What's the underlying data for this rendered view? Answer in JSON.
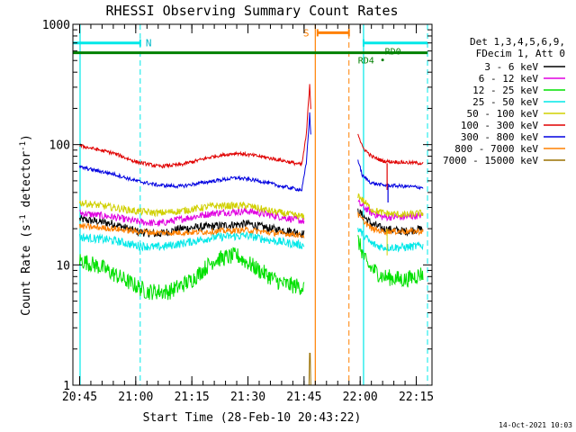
{
  "chart_data": {
    "type": "line",
    "title": "RHESSI Observing Summary Count Rates",
    "xlabel": "Start Time (28-Feb-10 20:43:22)",
    "ylabel_main": "Count Rate (s",
    "ylabel_sup1": "-1",
    "ylabel_mid": " detector",
    "ylabel_sup2": "-1",
    "ylabel_end": ")",
    "yscale": "log",
    "ylim": [
      1,
      1000
    ],
    "xlim_minutes": [
      20.72,
      22.32
    ],
    "x_ticks": [
      {
        "v": 20.75,
        "label": "20:45"
      },
      {
        "v": 21.0,
        "label": "21:00"
      },
      {
        "v": 21.25,
        "label": "21:15"
      },
      {
        "v": 21.5,
        "label": "21:30"
      },
      {
        "v": 21.75,
        "label": "21:45"
      },
      {
        "v": 22.0,
        "label": "22:00"
      },
      {
        "v": 22.25,
        "label": "22:15"
      }
    ],
    "y_ticks": [
      {
        "v": 1,
        "label": "1"
      },
      {
        "v": 10,
        "label": "10"
      },
      {
        "v": 100,
        "label": "100"
      },
      {
        "v": 1000,
        "label": "1000"
      }
    ],
    "legend_header": [
      "Det 1,3,4,5,6,9,",
      "FDecim 1, Att 0"
    ],
    "legend": [
      {
        "label": "3 - 6 keV",
        "color": "#000000"
      },
      {
        "label": "6 - 12 keV",
        "color": "#e000e0"
      },
      {
        "label": "12 - 25 keV",
        "color": "#00e000"
      },
      {
        "label": "25 - 50 keV",
        "color": "#00e8e8"
      },
      {
        "label": "50 - 100 keV",
        "color": "#d0d000"
      },
      {
        "label": "100 - 300 keV",
        "color": "#e00000"
      },
      {
        "label": "300 - 800 keV",
        "color": "#0000e0"
      },
      {
        "label": "800 - 7000 keV",
        "color": "#ff8000"
      },
      {
        "label": "7000 - 15000 keV",
        "color": "#9a7000"
      }
    ],
    "series": [
      {
        "name": "3 - 6 keV",
        "color": "#000000",
        "noise": 0.035,
        "seg1": [
          [
            20.75,
            24
          ],
          [
            20.9,
            22
          ],
          [
            21.0,
            19
          ],
          [
            21.1,
            18
          ],
          [
            21.2,
            20
          ],
          [
            21.35,
            21
          ],
          [
            21.5,
            22
          ],
          [
            21.6,
            20
          ],
          [
            21.7,
            19
          ],
          [
            21.75,
            18
          ]
        ],
        "seg2": [
          [
            21.99,
            28
          ],
          [
            22.05,
            22
          ],
          [
            22.1,
            20
          ],
          [
            22.2,
            19
          ],
          [
            22.28,
            20
          ]
        ]
      },
      {
        "name": "6 - 12 keV",
        "color": "#e000e0",
        "noise": 0.03,
        "seg1": [
          [
            20.75,
            27
          ],
          [
            20.9,
            25
          ],
          [
            21.0,
            23
          ],
          [
            21.1,
            22
          ],
          [
            21.2,
            24
          ],
          [
            21.35,
            27
          ],
          [
            21.5,
            28
          ],
          [
            21.6,
            26
          ],
          [
            21.7,
            24
          ],
          [
            21.75,
            23
          ]
        ],
        "seg2": [
          [
            21.99,
            33
          ],
          [
            22.05,
            27
          ],
          [
            22.1,
            25
          ],
          [
            22.2,
            25
          ],
          [
            22.28,
            26
          ]
        ]
      },
      {
        "name": "12 - 25 keV",
        "color": "#00e000",
        "noise": 0.07,
        "seg1": [
          [
            20.75,
            11
          ],
          [
            20.85,
            9.5
          ],
          [
            20.95,
            7.5
          ],
          [
            21.05,
            6.0
          ],
          [
            21.15,
            6.0
          ],
          [
            21.25,
            7.5
          ],
          [
            21.35,
            11
          ],
          [
            21.45,
            12
          ],
          [
            21.55,
            9
          ],
          [
            21.65,
            7
          ],
          [
            21.75,
            6.5
          ]
        ],
        "seg2": [
          [
            21.99,
            16
          ],
          [
            22.03,
            10
          ],
          [
            22.1,
            8
          ],
          [
            22.2,
            7.5
          ],
          [
            22.28,
            8.5
          ]
        ]
      },
      {
        "name": "25 - 50 keV",
        "color": "#00e8e8",
        "noise": 0.035,
        "seg1": [
          [
            20.75,
            17
          ],
          [
            20.9,
            16
          ],
          [
            21.0,
            14.5
          ],
          [
            21.1,
            14
          ],
          [
            21.2,
            15
          ],
          [
            21.35,
            17
          ],
          [
            21.5,
            17.5
          ],
          [
            21.6,
            16
          ],
          [
            21.7,
            15
          ],
          [
            21.75,
            14.5
          ]
        ],
        "seg2": [
          [
            21.99,
            20
          ],
          [
            22.05,
            15
          ],
          [
            22.1,
            14
          ],
          [
            22.2,
            14
          ],
          [
            22.28,
            14.5
          ]
        ]
      },
      {
        "name": "50 - 100 keV",
        "color": "#d0d000",
        "noise": 0.03,
        "seg1": [
          [
            20.75,
            33
          ],
          [
            20.9,
            30
          ],
          [
            21.0,
            28
          ],
          [
            21.1,
            27
          ],
          [
            21.2,
            28
          ],
          [
            21.35,
            31
          ],
          [
            21.5,
            31
          ],
          [
            21.6,
            28
          ],
          [
            21.7,
            26
          ],
          [
            21.75,
            25
          ]
        ],
        "seg2": [
          [
            21.99,
            38
          ],
          [
            22.05,
            29
          ],
          [
            22.1,
            27
          ],
          [
            22.2,
            26
          ],
          [
            22.28,
            27
          ]
        ]
      },
      {
        "name": "100 - 300 keV",
        "color": "#e00000",
        "noise": 0.015,
        "seg1": [
          [
            20.75,
            98
          ],
          [
            20.9,
            85
          ],
          [
            21.0,
            72
          ],
          [
            21.1,
            66
          ],
          [
            21.2,
            68
          ],
          [
            21.35,
            80
          ],
          [
            21.45,
            85
          ],
          [
            21.55,
            80
          ],
          [
            21.65,
            74
          ],
          [
            21.74,
            68
          ],
          [
            21.76,
            120
          ],
          [
            21.775,
            320
          ],
          [
            21.78,
            200
          ]
        ],
        "seg2": [
          [
            21.99,
            125
          ],
          [
            22.01,
            95
          ],
          [
            22.05,
            80
          ],
          [
            22.1,
            73
          ],
          [
            22.2,
            71
          ],
          [
            22.28,
            70
          ]
        ]
      },
      {
        "name": "300 - 800 keV",
        "color": "#0000e0",
        "noise": 0.015,
        "seg1": [
          [
            20.75,
            65
          ],
          [
            20.9,
            57
          ],
          [
            21.0,
            50
          ],
          [
            21.1,
            46
          ],
          [
            21.2,
            45
          ],
          [
            21.35,
            50
          ],
          [
            21.45,
            53
          ],
          [
            21.55,
            50
          ],
          [
            21.65,
            45
          ],
          [
            21.74,
            42
          ],
          [
            21.76,
            70
          ],
          [
            21.775,
            180
          ],
          [
            21.78,
            120
          ]
        ],
        "seg2": [
          [
            21.99,
            75
          ],
          [
            22.01,
            55
          ],
          [
            22.05,
            48
          ],
          [
            22.1,
            46
          ],
          [
            22.2,
            45
          ],
          [
            22.28,
            44
          ]
        ]
      },
      {
        "name": "800 - 7000 keV",
        "color": "#ff8000",
        "noise": 0.025,
        "seg1": [
          [
            20.75,
            21
          ],
          [
            20.9,
            20
          ],
          [
            21.0,
            19
          ],
          [
            21.1,
            18.5
          ],
          [
            21.2,
            18.5
          ],
          [
            21.35,
            19
          ],
          [
            21.5,
            19.5
          ],
          [
            21.6,
            18.5
          ],
          [
            21.7,
            18
          ],
          [
            21.75,
            17.5
          ]
        ],
        "seg2": [
          [
            21.99,
            26
          ],
          [
            22.05,
            20
          ],
          [
            22.1,
            19
          ],
          [
            22.2,
            19
          ],
          [
            22.28,
            19
          ]
        ]
      },
      {
        "name": "7000 - 15000 keV",
        "color": "#9a7000",
        "noise": 0.0,
        "seg1": [
          [
            21.772,
            1
          ],
          [
            21.776,
            2.5
          ],
          [
            21.78,
            1
          ]
        ],
        "seg2": []
      }
    ],
    "labels": {
      "n": "N",
      "s": "S",
      "rd0": "RD0",
      "rd4": "RD4"
    },
    "annotation_lines": {
      "cyan_solid": [
        20.752,
        22.015
      ],
      "cyan_dashed": [
        21.02,
        22.3
      ],
      "orange_solid": [
        21.8
      ],
      "orange_dashed": [
        21.95
      ],
      "bars": {
        "cyan_n": [
          [
            20.72,
            21.02
          ],
          [
            22.015,
            22.3
          ]
        ],
        "orange_s": [
          21.81,
          21.95
        ],
        "green": [
          20.72,
          22.3
        ],
        "green_right": [
          22.02,
          22.3
        ]
      },
      "bar_levels": {
        "cyan": 700,
        "orange": 850,
        "green": 580,
        "green_right": 600
      }
    },
    "grid": false,
    "legend_position": "right"
  },
  "footer_timestamp": "14-Oct-2021 10:03"
}
